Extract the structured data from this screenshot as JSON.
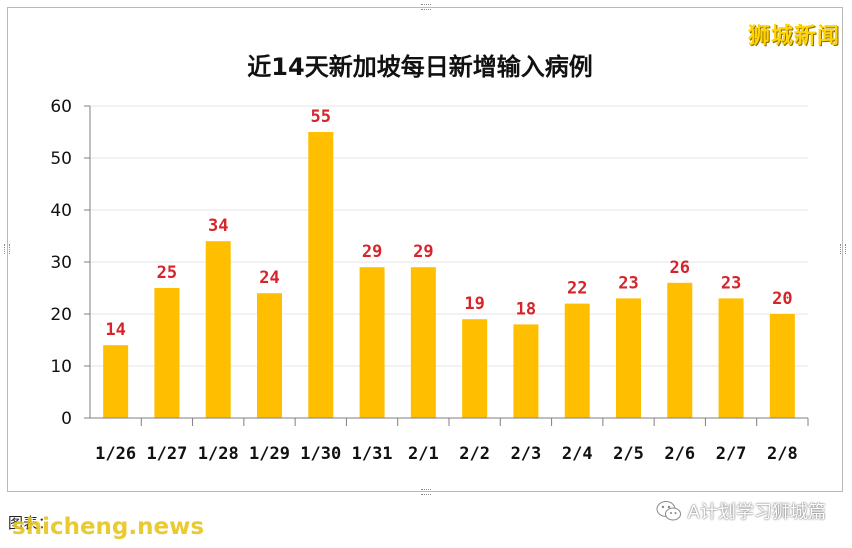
{
  "brand": {
    "watermark_top": "狮城新闻"
  },
  "footer": {
    "credit": "图表：      ",
    "watermark_left": "shicheng.news",
    "wechat_label": "A计划学习狮城篇"
  },
  "colors": {
    "bar": "#ffbf00",
    "data_label": "#d6242a",
    "brand_yellow": "#ffd400"
  },
  "chart_data": {
    "type": "bar",
    "title": "近14天新加坡每日新增输入病例",
    "categories": [
      "1/26",
      "1/27",
      "1/28",
      "1/29",
      "1/30",
      "1/31",
      "2/1",
      "2/2",
      "2/3",
      "2/4",
      "2/5",
      "2/6",
      "2/7",
      "2/8"
    ],
    "values": [
      14,
      25,
      34,
      24,
      55,
      29,
      29,
      19,
      18,
      22,
      23,
      26,
      23,
      20
    ],
    "xlabel": "",
    "ylabel": "",
    "ylim": [
      0,
      60
    ],
    "yticks": [
      0,
      10,
      20,
      30,
      40,
      50,
      60
    ],
    "grid": true,
    "legend": "none",
    "data_labels": true
  }
}
